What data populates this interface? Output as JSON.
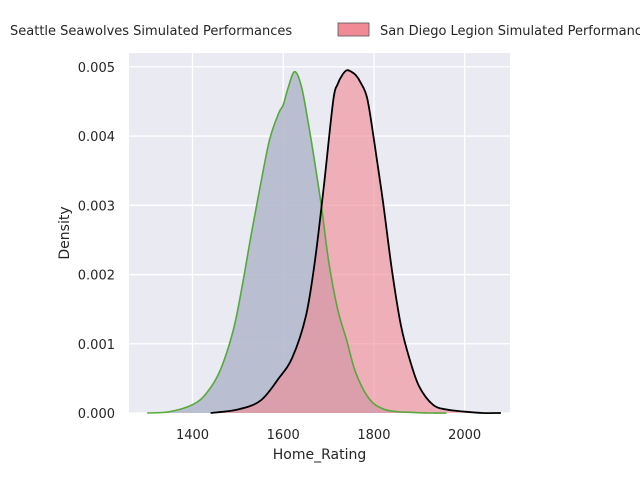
{
  "chart_data": {
    "type": "area",
    "chart_kind": "kde",
    "title": "",
    "xlabel": "Home_Rating",
    "ylabel": "Density",
    "xlim": [
      1260,
      2100
    ],
    "ylim": [
      0,
      0.0052
    ],
    "x_ticks": [
      1400,
      1600,
      1800,
      2000
    ],
    "y_ticks": [
      0.0,
      0.001,
      0.002,
      0.003,
      0.004,
      0.005
    ],
    "x_tick_labels": [
      "1400",
      "1600",
      "1800",
      "2000"
    ],
    "y_tick_labels": [
      "0.000",
      "0.001",
      "0.002",
      "0.003",
      "0.004",
      "0.005"
    ],
    "grid": true,
    "legend_position": "top, above plot",
    "series": [
      {
        "name": "Seattle Seawolves Simulated Performances",
        "fill_color": "#b2b8cb",
        "line_color": "#56a83b",
        "x": [
          1300,
          1350,
          1400,
          1430,
          1460,
          1490,
          1510,
          1530,
          1550,
          1570,
          1590,
          1600,
          1610,
          1625,
          1640,
          1655,
          1670,
          1685,
          1700,
          1720,
          1740,
          1760,
          1790,
          1820,
          1850,
          1880,
          1920,
          1960
        ],
        "y": [
          0.0,
          2e-05,
          0.00012,
          0.00028,
          0.0006,
          0.0012,
          0.00185,
          0.0026,
          0.0033,
          0.00395,
          0.00433,
          0.00445,
          0.00468,
          0.00493,
          0.00472,
          0.0042,
          0.0036,
          0.00295,
          0.0022,
          0.0015,
          0.00105,
          0.00058,
          0.0002,
          6e-05,
          2e-05,
          1e-05,
          0.0,
          0.0
        ]
      },
      {
        "name": "San Diego Legion Simulated Performances",
        "fill_color": "#f08a94",
        "line_color": "#000000",
        "x": [
          1440,
          1500,
          1550,
          1590,
          1620,
          1650,
          1670,
          1690,
          1710,
          1720,
          1730,
          1740,
          1750,
          1760,
          1770,
          1785,
          1800,
          1820,
          1840,
          1860,
          1880,
          1900,
          1930,
          1960,
          2000,
          2040,
          2080
        ],
        "y": [
          0.0,
          5e-05,
          0.00018,
          0.0005,
          0.0008,
          0.0014,
          0.0022,
          0.0033,
          0.0045,
          0.00475,
          0.00488,
          0.00495,
          0.00493,
          0.00488,
          0.00478,
          0.00455,
          0.00395,
          0.00305,
          0.00205,
          0.00125,
          0.00075,
          0.00038,
          0.00012,
          5e-05,
          2e-05,
          0.0,
          0.0
        ]
      }
    ]
  }
}
